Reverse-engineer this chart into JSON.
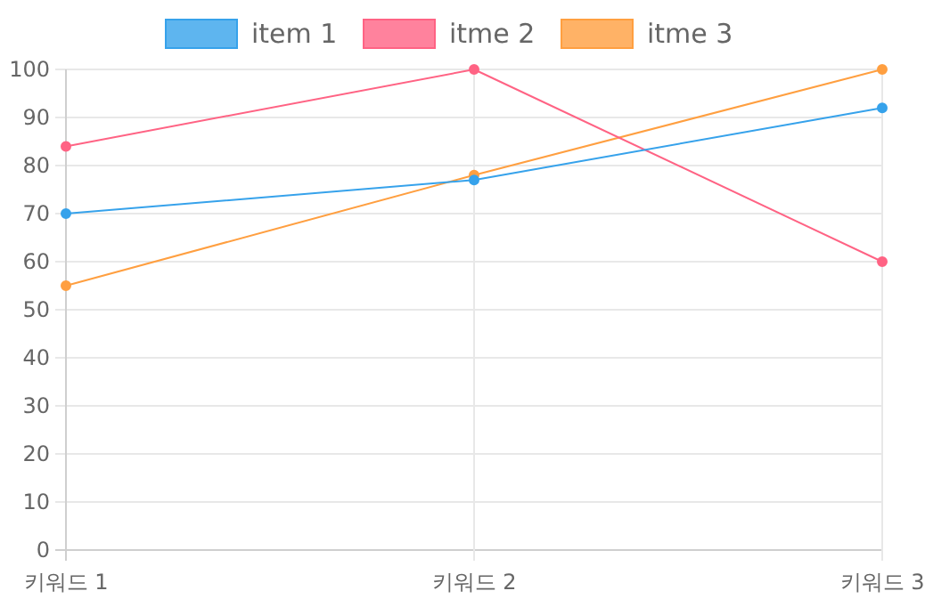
{
  "chart_data": {
    "type": "line",
    "categories": [
      "키워드 1",
      "키워드 2",
      "키워드 3"
    ],
    "series": [
      {
        "name": "item 1",
        "color": "#36a2eb",
        "values": [
          70,
          77,
          92
        ]
      },
      {
        "name": "itme 2",
        "color": "#ff6384",
        "values": [
          84,
          100,
          60
        ]
      },
      {
        "name": "itme 3",
        "color": "#ff9f40",
        "values": [
          55,
          78,
          100
        ]
      }
    ],
    "ylim": [
      0,
      100
    ],
    "yticks": [
      0,
      10,
      20,
      30,
      40,
      50,
      60,
      70,
      80,
      90,
      100
    ],
    "grid": true,
    "legend": "top",
    "marker": "circle",
    "line_style": "solid"
  }
}
